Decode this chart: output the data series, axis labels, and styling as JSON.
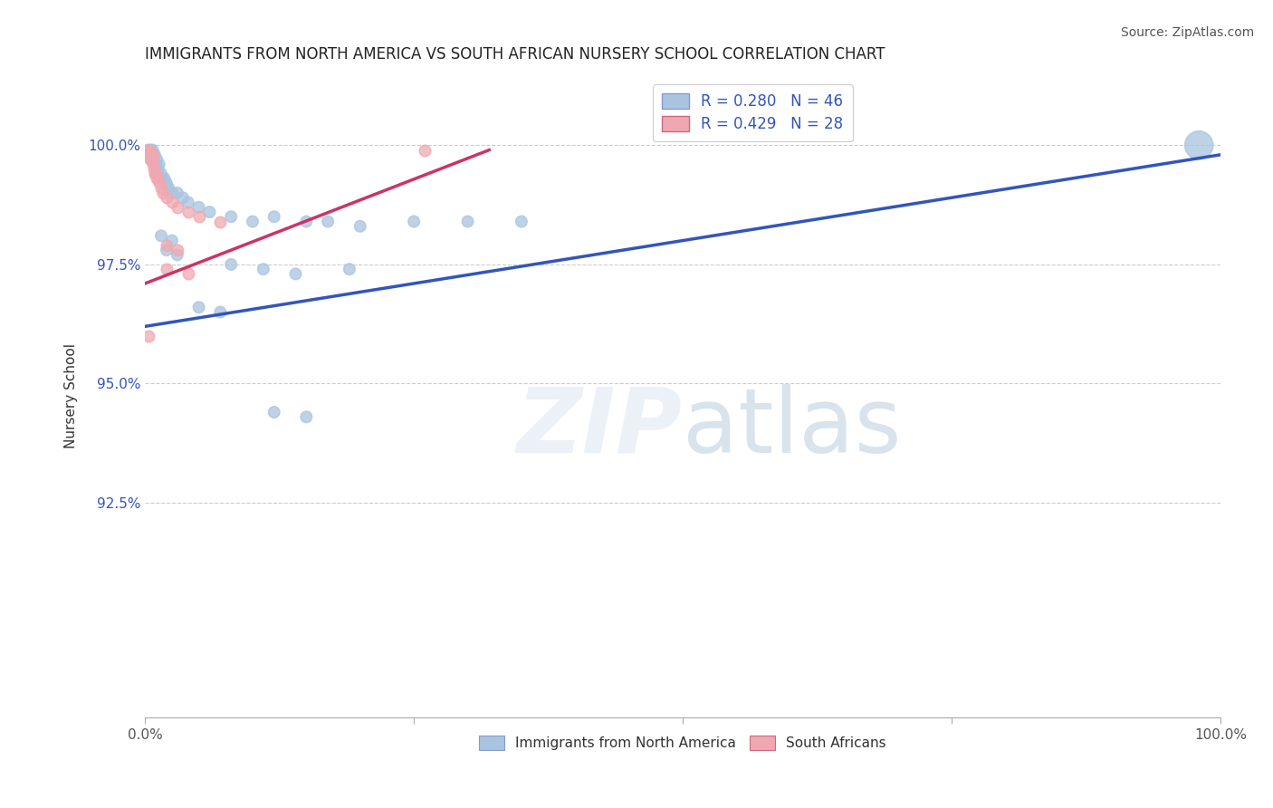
{
  "title": "IMMIGRANTS FROM NORTH AMERICA VS SOUTH AFRICAN NURSERY SCHOOL CORRELATION CHART",
  "source": "Source: ZipAtlas.com",
  "ylabel": "Nursery School",
  "xlim": [
    0.0,
    1.0
  ],
  "ylim": [
    0.88,
    1.015
  ],
  "ytick_positions": [
    0.925,
    0.95,
    0.975,
    1.0
  ],
  "ytick_labels": [
    "92.5%",
    "95.0%",
    "97.5%",
    "100.0%"
  ],
  "blue_R": 0.28,
  "blue_N": 46,
  "pink_R": 0.429,
  "pink_N": 28,
  "blue_color": "#a8c4e0",
  "pink_color": "#f0a8b0",
  "blue_line_color": "#3355bb",
  "pink_line_color": "#cc3366",
  "legend_label_blue": "Immigrants from North America",
  "legend_label_pink": "South Africans",
  "blue_line_x0": 0.0,
  "blue_line_y0": 0.962,
  "blue_line_x1": 1.0,
  "blue_line_y1": 0.998,
  "pink_line_x0": 0.0,
  "pink_line_y0": 0.971,
  "pink_line_x1": 0.32,
  "pink_line_y1": 0.999,
  "blue_dots": [
    [
      0.003,
      0.999
    ],
    [
      0.004,
      0.998
    ],
    [
      0.005,
      0.998
    ],
    [
      0.005,
      0.999
    ],
    [
      0.006,
      0.997
    ],
    [
      0.007,
      0.998
    ],
    [
      0.007,
      0.999
    ],
    [
      0.008,
      0.997
    ],
    [
      0.009,
      0.998
    ],
    [
      0.01,
      0.996
    ],
    [
      0.011,
      0.997
    ],
    [
      0.012,
      0.995
    ],
    [
      0.013,
      0.996
    ],
    [
      0.015,
      0.994
    ],
    [
      0.016,
      0.993
    ],
    [
      0.018,
      0.993
    ],
    [
      0.02,
      0.992
    ],
    [
      0.022,
      0.991
    ],
    [
      0.025,
      0.99
    ],
    [
      0.03,
      0.99
    ],
    [
      0.035,
      0.989
    ],
    [
      0.04,
      0.988
    ],
    [
      0.05,
      0.987
    ],
    [
      0.06,
      0.986
    ],
    [
      0.08,
      0.985
    ],
    [
      0.1,
      0.984
    ],
    [
      0.12,
      0.985
    ],
    [
      0.15,
      0.984
    ],
    [
      0.17,
      0.984
    ],
    [
      0.2,
      0.983
    ],
    [
      0.25,
      0.984
    ],
    [
      0.3,
      0.984
    ],
    [
      0.35,
      0.984
    ],
    [
      0.015,
      0.981
    ],
    [
      0.025,
      0.98
    ],
    [
      0.02,
      0.978
    ],
    [
      0.03,
      0.977
    ],
    [
      0.08,
      0.975
    ],
    [
      0.11,
      0.974
    ],
    [
      0.14,
      0.973
    ],
    [
      0.19,
      0.974
    ],
    [
      0.12,
      0.944
    ],
    [
      0.15,
      0.943
    ],
    [
      0.05,
      0.966
    ],
    [
      0.07,
      0.965
    ],
    [
      0.98,
      1.0
    ]
  ],
  "pink_dots": [
    [
      0.003,
      0.999
    ],
    [
      0.004,
      0.999
    ],
    [
      0.005,
      0.998
    ],
    [
      0.005,
      0.997
    ],
    [
      0.006,
      0.998
    ],
    [
      0.006,
      0.997
    ],
    [
      0.007,
      0.996
    ],
    [
      0.007,
      0.998
    ],
    [
      0.008,
      0.995
    ],
    [
      0.009,
      0.994
    ],
    [
      0.01,
      0.994
    ],
    [
      0.011,
      0.993
    ],
    [
      0.012,
      0.993
    ],
    [
      0.013,
      0.992
    ],
    [
      0.015,
      0.991
    ],
    [
      0.017,
      0.99
    ],
    [
      0.02,
      0.989
    ],
    [
      0.025,
      0.988
    ],
    [
      0.03,
      0.987
    ],
    [
      0.04,
      0.986
    ],
    [
      0.05,
      0.985
    ],
    [
      0.07,
      0.984
    ],
    [
      0.02,
      0.979
    ],
    [
      0.03,
      0.978
    ],
    [
      0.02,
      0.974
    ],
    [
      0.04,
      0.973
    ],
    [
      0.003,
      0.96
    ],
    [
      0.26,
      0.999
    ]
  ],
  "blue_large_dot": [
    0.98,
    1.0
  ],
  "blue_large_size": 500,
  "dot_size": 80
}
